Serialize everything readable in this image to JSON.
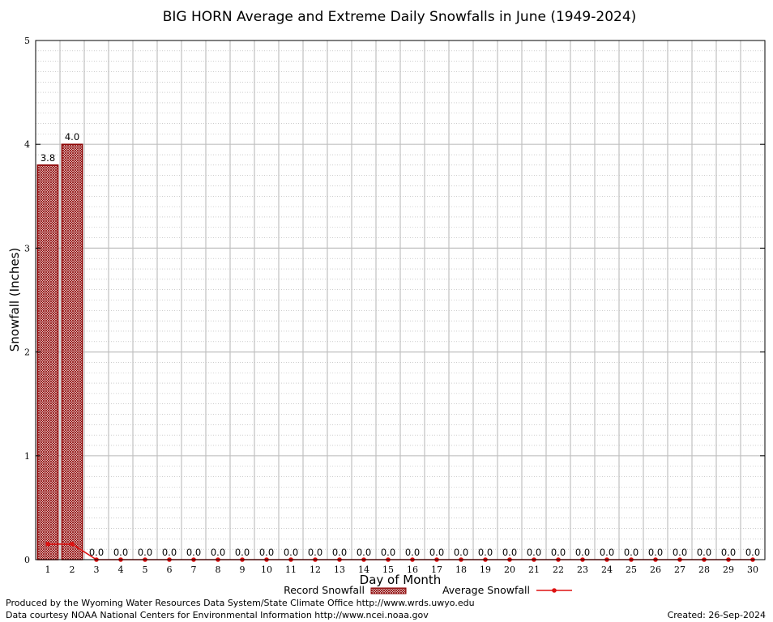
{
  "chart_data": {
    "type": "bar",
    "title": "BIG HORN Average and Extreme Daily Snowfalls in June (1949-2024)",
    "xlabel": "Day of Month",
    "ylabel": "Snowfall (Inches)",
    "ylim": [
      0,
      5
    ],
    "yticks": [
      "0",
      "1",
      "2",
      "3",
      "4",
      "5"
    ],
    "categories": [
      "1",
      "2",
      "3",
      "4",
      "5",
      "6",
      "7",
      "8",
      "9",
      "10",
      "11",
      "12",
      "13",
      "14",
      "15",
      "16",
      "17",
      "18",
      "19",
      "20",
      "21",
      "22",
      "23",
      "24",
      "25",
      "26",
      "27",
      "28",
      "29",
      "30"
    ],
    "series": [
      {
        "name": "Record Snowfall",
        "type": "bar",
        "values": [
          3.8,
          4.0,
          0,
          0,
          0,
          0,
          0,
          0,
          0,
          0,
          0,
          0,
          0,
          0,
          0,
          0,
          0,
          0,
          0,
          0,
          0,
          0,
          0,
          0,
          0,
          0,
          0,
          0,
          0,
          0
        ],
        "labels": [
          "3.8",
          "4.0",
          "0.0",
          "0.0",
          "0.0",
          "0.0",
          "0.0",
          "0.0",
          "0.0",
          "0.0",
          "0.0",
          "0.0",
          "0.0",
          "0.0",
          "0.0",
          "0.0",
          "0.0",
          "0.0",
          "0.0",
          "0.0",
          "0.0",
          "0.0",
          "0.0",
          "0.0",
          "0.0",
          "0.0",
          "0.0",
          "0.0",
          "0.0",
          "0.0"
        ]
      },
      {
        "name": "Average Snowfall",
        "type": "line",
        "values": [
          0.15,
          0.15,
          0,
          0,
          0,
          0,
          0,
          0,
          0,
          0,
          0,
          0,
          0,
          0,
          0,
          0,
          0,
          0,
          0,
          0,
          0,
          0,
          0,
          0,
          0,
          0,
          0,
          0,
          0,
          0
        ]
      }
    ],
    "grid": true,
    "legend_position": "bottom-center",
    "colors": {
      "bar_outline": "#8b0000",
      "bar_fill": "#c8a0a0",
      "line": "#dd1111",
      "grid": "#c0c0c0"
    }
  },
  "footer": {
    "left_line1": "Produced by the Wyoming Water Resources Data System/State Climate Office http://www.wrds.uwyo.edu",
    "left_line2": "Data courtesy NOAA National Centers for Environmental Information http://www.ncei.noaa.gov",
    "created": "Created:  26-Sep-2024"
  }
}
